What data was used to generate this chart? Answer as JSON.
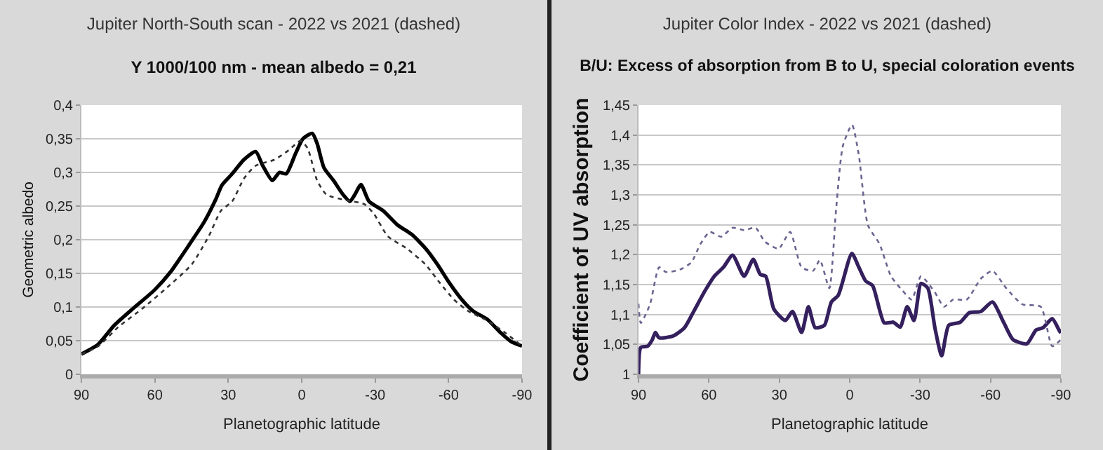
{
  "chart_data": [
    {
      "type": "line",
      "title": "Jupiter North-South scan - 2022 vs 2021 (dashed)",
      "subtitle": "Y 1000/100 nm - mean albedo = 0,21",
      "xlabel": "Planetographic latitude",
      "ylabel": "Geometric albedo",
      "xlim": [
        90,
        -90
      ],
      "xticks": [
        90,
        60,
        30,
        0,
        -30,
        -60,
        -90
      ],
      "ylim": [
        0,
        0.4
      ],
      "yticks": [
        0,
        {
          "value": 0.05,
          "label": "0,05"
        },
        {
          "value": 0.1,
          "label": "0,1"
        },
        {
          "value": 0.15,
          "label": "0,15"
        },
        {
          "value": 0.2,
          "label": "0,2"
        },
        {
          "value": 0.25,
          "label": "0,25"
        },
        {
          "value": 0.3,
          "label": "0,3"
        },
        {
          "value": 0.35,
          "label": "0,35"
        },
        {
          "value": 0.4,
          "label": "0,4"
        }
      ],
      "grid": "y",
      "series": [
        {
          "color": "#000000",
          "line_style": "solid",
          "x": [
            90,
            83.3,
            76.5,
            68.8,
            60.2,
            53.4,
            45.7,
            39.9,
            35.1,
            32.6,
            28.4,
            23.6,
            18.8,
            15.9,
            12,
            9.1,
            6.3,
            2.4,
            -0.5,
            -4.3,
            -6.3,
            -9.1,
            -13,
            -16.9,
            -19.7,
            -21.7,
            -24.2,
            -27.5,
            -33.3,
            -39.1,
            -44.9,
            -50.6,
            -55.5,
            -60.3,
            -66.1,
            -70,
            -75.7,
            -81.5,
            -85.4,
            -90
          ],
          "values": [
            0.03,
            0.044,
            0.073,
            0.098,
            0.125,
            0.153,
            0.194,
            0.226,
            0.26,
            0.281,
            0.298,
            0.319,
            0.331,
            0.31,
            0.288,
            0.3,
            0.298,
            0.329,
            0.35,
            0.358,
            0.343,
            0.307,
            0.288,
            0.267,
            0.257,
            0.267,
            0.282,
            0.257,
            0.243,
            0.222,
            0.208,
            0.187,
            0.163,
            0.136,
            0.108,
            0.094,
            0.082,
            0.061,
            0.049,
            0.042
          ]
        },
        {
          "color": "#333333",
          "line_style": "dotted",
          "x": [
            90,
            83,
            75,
            65,
            55,
            45,
            38,
            33,
            28.4,
            23.6,
            18.8,
            11.1,
            5.3,
            0.5,
            -2.4,
            -6.3,
            -10.1,
            -17.8,
            -25.5,
            -29.4,
            -35.2,
            -42.9,
            -50.6,
            -56.4,
            -62.2,
            -68,
            -75.7,
            -83.4,
            -90
          ],
          "values": [
            0.03,
            0.042,
            0.07,
            0.098,
            0.129,
            0.163,
            0.205,
            0.243,
            0.257,
            0.291,
            0.31,
            0.319,
            0.333,
            0.347,
            0.336,
            0.288,
            0.267,
            0.259,
            0.253,
            0.239,
            0.205,
            0.187,
            0.163,
            0.136,
            0.111,
            0.094,
            0.08,
            0.061,
            0.042
          ]
        }
      ]
    },
    {
      "type": "line",
      "title": "Jupiter Color Index - 2022 vs 2021 (dashed)",
      "subtitle": "B/U: Excess of absorption from B to U, special coloration events",
      "xlabel": "Planetographic latitude",
      "ylabel": "Coefficient of UV absorption",
      "xlim": [
        90,
        -90
      ],
      "xticks": [
        90,
        60,
        30,
        0,
        -30,
        -60,
        -90
      ],
      "ylim": [
        1,
        1.45
      ],
      "yticks": [
        1,
        {
          "value": 1.05,
          "label": "1,05"
        },
        {
          "value": 1.1,
          "label": "1,1"
        },
        {
          "value": 1.15,
          "label": "1,15"
        },
        {
          "value": 1.2,
          "label": "1,2"
        },
        {
          "value": 1.25,
          "label": "1,25"
        },
        {
          "value": 1.3,
          "label": "1,3"
        },
        {
          "value": 1.35,
          "label": "1,35"
        },
        {
          "value": 1.4,
          "label": "1,4"
        },
        {
          "value": 1.45,
          "label": "1,45"
        }
      ],
      "grid": "y",
      "series": [
        {
          "color": "#35205e",
          "line_style": "solid",
          "x": [
            90,
            89,
            86.1,
            84.1,
            82.8,
            81.2,
            75.3,
            70.4,
            66.5,
            61.6,
            57.7,
            53.8,
            49.9,
            45,
            41.1,
            38.1,
            35.8,
            32.3,
            27.4,
            24.4,
            20.5,
            17.6,
            14.7,
            10.8,
            7.8,
            4.9,
            -0.9,
            -3.9,
            -6.8,
            -9.8,
            -14.7,
            -18.6,
            -21.5,
            -24.5,
            -27.4,
            -30.4,
            -33.3,
            -36.3,
            -39.2,
            -42.2,
            -47.1,
            -51,
            -55.9,
            -60.8,
            -65.7,
            -69.6,
            -75.5,
            -79.4,
            -82.4,
            -86.3,
            -89.2,
            -90
          ],
          "values": [
            1.0,
            1.045,
            1.047,
            1.058,
            1.07,
            1.061,
            1.064,
            1.078,
            1.105,
            1.14,
            1.164,
            1.179,
            1.199,
            1.164,
            1.192,
            1.167,
            1.164,
            1.109,
            1.09,
            1.105,
            1.07,
            1.113,
            1.078,
            1.082,
            1.121,
            1.132,
            1.202,
            1.179,
            1.156,
            1.148,
            1.086,
            1.087,
            1.079,
            1.113,
            1.09,
            1.152,
            1.144,
            1.078,
            1.031,
            1.082,
            1.087,
            1.103,
            1.105,
            1.121,
            1.086,
            1.058,
            1.051,
            1.074,
            1.078,
            1.093,
            1.074,
            1.069
          ]
        },
        {
          "color": "#6c6490",
          "line_style": "dotted",
          "x": [
            90,
            89,
            85.1,
            81.2,
            78.3,
            72.4,
            67.5,
            63.6,
            59.6,
            54.8,
            49.9,
            45,
            40.1,
            36.2,
            30.3,
            25.4,
            20.5,
            15.6,
            12.7,
            8.7,
            5.8,
            2.9,
            -1,
            -3.9,
            -7.8,
            -12.7,
            -17.6,
            -22.5,
            -26.4,
            -30.4,
            -36.3,
            -40.2,
            -44.1,
            -49.9,
            -55.9,
            -60.8,
            -66.7,
            -73.6,
            -81.4,
            -86.3,
            -90
          ],
          "values": [
            1.118,
            1.086,
            1.117,
            1.179,
            1.171,
            1.175,
            1.187,
            1.218,
            1.238,
            1.23,
            1.245,
            1.241,
            1.245,
            1.222,
            1.21,
            1.238,
            1.179,
            1.173,
            1.191,
            1.144,
            1.276,
            1.382,
            1.417,
            1.366,
            1.249,
            1.218,
            1.164,
            1.14,
            1.125,
            1.164,
            1.137,
            1.113,
            1.125,
            1.125,
            1.16,
            1.173,
            1.144,
            1.117,
            1.113,
            1.047,
            1.058
          ]
        }
      ]
    }
  ]
}
